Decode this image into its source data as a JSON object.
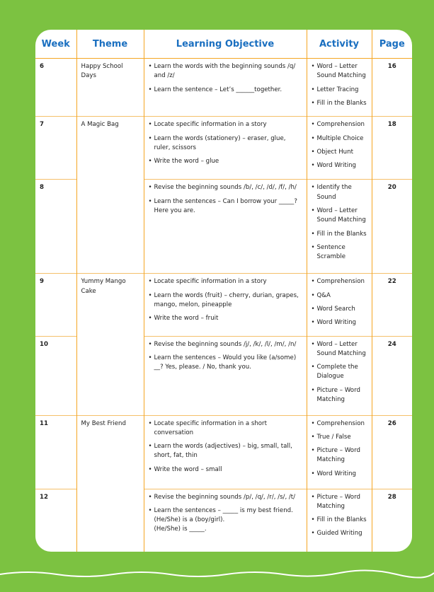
{
  "table": {
    "columns": [
      "Week",
      "Theme",
      "Learning Objective",
      "Activity",
      "Page"
    ],
    "units": [
      {
        "theme": "Happy School Days",
        "weeks": [
          {
            "week": 6,
            "objectives": [
              "Learn the words with the beginning sounds /q/ and /z/",
              "Learn the sentence – Let’s ______together."
            ],
            "activities": [
              "Word – Letter Sound Matching",
              "Letter Tracing",
              "Fill in the Blanks"
            ],
            "page": 16
          }
        ]
      },
      {
        "theme": "A Magic Bag",
        "weeks": [
          {
            "week": 7,
            "objectives": [
              "Locate specific information in a story",
              "Learn the words (stationery) – eraser, glue, ruler, scissors",
              "Write the word – glue"
            ],
            "activities": [
              "Comprehension",
              "Multiple Choice",
              "Object Hunt",
              "Word Writing"
            ],
            "page": 18
          },
          {
            "week": 8,
            "objectives": [
              "Revise the beginning sounds /b/, /c/, /d/, /f/, /h/",
              "Learn the sentences – Can I borrow your _____?\nHere you are."
            ],
            "activities": [
              "Identify the Sound",
              "Word – Letter Sound Matching",
              "Fill in the Blanks",
              "Sentence Scramble"
            ],
            "page": 20
          }
        ]
      },
      {
        "theme": "Yummy Mango Cake",
        "weeks": [
          {
            "week": 9,
            "objectives": [
              "Locate specific information in a story",
              "Learn the words (fruit) – cherry, durian, grapes, mango, melon, pineapple",
              "Write the word – fruit"
            ],
            "activities": [
              "Comprehension",
              "Q&A",
              "Word Search",
              "Word Writing"
            ],
            "page": 22
          },
          {
            "week": 10,
            "objectives": [
              "Revise the beginning sounds /j/, /k/, /l/, /m/, /n/",
              "Learn the sentences – Would you like (a/some) __? Yes, please. / No, thank you."
            ],
            "activities": [
              "Word – Letter Sound Matching",
              "Complete the Dialogue",
              "Picture – Word Matching"
            ],
            "page": 24
          }
        ]
      },
      {
        "theme": "My Best Friend",
        "weeks": [
          {
            "week": 11,
            "objectives": [
              "Locate specific information in a short conversation",
              "Learn the words (adjectives) – big, small, tall, short, fat, thin",
              "Write the word – small"
            ],
            "activities": [
              "Comprehension",
              "True / False",
              "Picture – Word Matching",
              "Word Writing"
            ],
            "page": 26
          },
          {
            "week": 12,
            "objectives": [
              "Revise the beginning sounds /p/, /q/, /r/, /s/, /t/",
              "Learn the sentences – _____ is my best friend.\n(He/She) is a (boy/girl).\n(He/She) is _____."
            ],
            "activities": [
              "Picture – Word Matching",
              "Fill in the Blanks",
              "Guided Writing"
            ],
            "page": 28
          }
        ]
      }
    ]
  }
}
